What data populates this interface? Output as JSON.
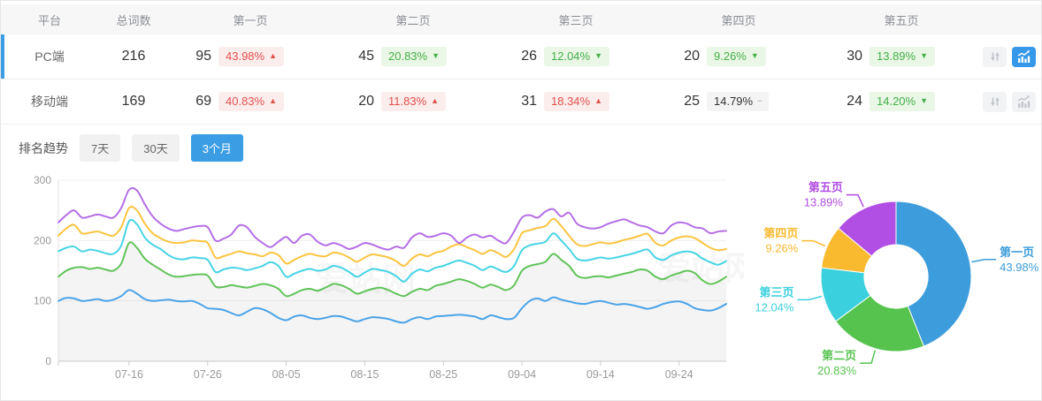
{
  "colors": {
    "accent": "#3b9ee5",
    "up_text": "#e2504c",
    "up_bg": "#fceded",
    "down_text": "#43b049",
    "down_bg": "#eaf6e6",
    "flat_text": "#333333",
    "flat_bg": "#f4f4f4"
  },
  "glyphs": {
    "up": "▲",
    "down": "▼",
    "flat": "−"
  },
  "table": {
    "headers": {
      "platform": "平台",
      "total": "总词数",
      "pages": [
        "第一页",
        "第二页",
        "第三页",
        "第四页",
        "第五页"
      ]
    },
    "rows": [
      {
        "platform": "PC端",
        "total": "216",
        "selected": true,
        "chart_active": true,
        "pages": [
          {
            "count": "95",
            "pct": "43.98%",
            "trend": "up"
          },
          {
            "count": "45",
            "pct": "20.83%",
            "trend": "down"
          },
          {
            "count": "26",
            "pct": "12.04%",
            "trend": "down"
          },
          {
            "count": "20",
            "pct": "9.26%",
            "trend": "down"
          },
          {
            "count": "30",
            "pct": "13.89%",
            "trend": "down"
          }
        ]
      },
      {
        "platform": "移动端",
        "total": "169",
        "selected": false,
        "chart_active": false,
        "pages": [
          {
            "count": "69",
            "pct": "40.83%",
            "trend": "up"
          },
          {
            "count": "20",
            "pct": "11.83%",
            "trend": "up"
          },
          {
            "count": "31",
            "pct": "18.34%",
            "trend": "up"
          },
          {
            "count": "25",
            "pct": "14.79%",
            "trend": "flat"
          },
          {
            "count": "24",
            "pct": "14.20%",
            "trend": "down"
          }
        ]
      }
    ]
  },
  "trend_tabs": {
    "label": "排名趋势",
    "options": [
      {
        "label": "7天",
        "active": false
      },
      {
        "label": "30天",
        "active": false
      },
      {
        "label": "3个月",
        "active": true
      }
    ]
  },
  "chart_data": [
    {
      "type": "line",
      "title": "排名趋势 (3个月)",
      "grid": true,
      "legend_position": "none",
      "watermark": "爱站网",
      "ylim": [
        0,
        300
      ],
      "y_ticks": [
        0,
        100,
        200,
        300
      ],
      "x_tick_labels": [
        "07-16",
        "07-26",
        "08-05",
        "08-15",
        "08-25",
        "09-04",
        "09-14",
        "09-24"
      ],
      "x_tick_day_index": [
        9,
        19,
        29,
        39,
        49,
        59,
        69,
        79
      ],
      "series": [
        {
          "name": "第一页",
          "color": "#4aa3e8",
          "area": false,
          "values": [
            100,
            105,
            104,
            100,
            101,
            103,
            100,
            102,
            108,
            118,
            112,
            103,
            100,
            101,
            102,
            100,
            99,
            100,
            95,
            88,
            87,
            85,
            80,
            76,
            82,
            88,
            86,
            80,
            72,
            68,
            74,
            76,
            72,
            70,
            72,
            75,
            74,
            70,
            66,
            70,
            73,
            72,
            70,
            66,
            64,
            70,
            73,
            70,
            74,
            75,
            76,
            77,
            76,
            74,
            70,
            76,
            73,
            70,
            72,
            88,
            100,
            104,
            100,
            106,
            102,
            99,
            96,
            95,
            98,
            100,
            97,
            94,
            95,
            93,
            90,
            87,
            90,
            95,
            98,
            99,
            95,
            88,
            85,
            84,
            88,
            95
          ]
        },
        {
          "name": "第二页",
          "color": "#62c35a",
          "area": true,
          "values": [
            140,
            150,
            155,
            156,
            153,
            155,
            152,
            150,
            162,
            196,
            188,
            170,
            160,
            152,
            144,
            140,
            141,
            143,
            144,
            142,
            124,
            123,
            126,
            124,
            122,
            125,
            128,
            126,
            120,
            108,
            112,
            118,
            120,
            117,
            122,
            128,
            126,
            120,
            112,
            116,
            120,
            122,
            118,
            112,
            108,
            115,
            120,
            118,
            125,
            128,
            132,
            136,
            133,
            128,
            122,
            127,
            123,
            118,
            126,
            150,
            158,
            161,
            165,
            178,
            168,
            158,
            142,
            138,
            140,
            141,
            139,
            142,
            145,
            148,
            152,
            150,
            140,
            136,
            142,
            146,
            150,
            146,
            134,
            128,
            132,
            140
          ]
        },
        {
          "name": "第三页",
          "color": "#47d4e5",
          "area": false,
          "values": [
            182,
            188,
            190,
            182,
            185,
            183,
            179,
            178,
            192,
            232,
            227,
            205,
            193,
            186,
            176,
            170,
            169,
            172,
            171,
            168,
            148,
            152,
            155,
            154,
            151,
            154,
            158,
            164,
            158,
            140,
            145,
            150,
            153,
            150,
            152,
            158,
            155,
            148,
            140,
            147,
            153,
            151,
            148,
            141,
            132,
            145,
            152,
            149,
            155,
            158,
            163,
            167,
            163,
            158,
            151,
            157,
            152,
            148,
            158,
            184,
            192,
            195,
            198,
            212,
            200,
            186,
            170,
            167,
            169,
            172,
            170,
            172,
            175,
            178,
            182,
            185,
            172,
            168,
            175,
            180,
            182,
            179,
            170,
            164,
            160,
            166
          ]
        },
        {
          "name": "第四页",
          "color": "#fbc440",
          "area": false,
          "values": [
            208,
            220,
            226,
            212,
            213,
            215,
            211,
            208,
            222,
            254,
            250,
            228,
            212,
            204,
            198,
            196,
            197,
            200,
            199,
            196,
            172,
            174,
            178,
            182,
            179,
            177,
            174,
            180,
            176,
            162,
            168,
            174,
            178,
            175,
            174,
            180,
            178,
            172,
            165,
            172,
            177,
            175,
            172,
            166,
            158,
            170,
            177,
            174,
            180,
            183,
            190,
            194,
            189,
            184,
            178,
            184,
            179,
            173,
            186,
            212,
            217,
            221,
            224,
            236,
            224,
            208,
            194,
            191,
            194,
            197,
            195,
            197,
            201,
            204,
            208,
            211,
            196,
            192,
            200,
            205,
            207,
            204,
            196,
            188,
            184,
            186
          ]
        },
        {
          "name": "第五页",
          "color": "#b46ee6",
          "area": false,
          "values": [
            230,
            242,
            250,
            238,
            240,
            243,
            240,
            238,
            254,
            284,
            283,
            260,
            240,
            228,
            220,
            216,
            219,
            222,
            224,
            222,
            200,
            203,
            210,
            225,
            222,
            206,
            196,
            189,
            198,
            206,
            196,
            208,
            210,
            198,
            192,
            196,
            192,
            186,
            190,
            196,
            193,
            188,
            185,
            190,
            188,
            205,
            212,
            206,
            208,
            212,
            208,
            196,
            205,
            210,
            205,
            208,
            200,
            196,
            215,
            238,
            242,
            238,
            248,
            252,
            240,
            246,
            228,
            222,
            220,
            222,
            228,
            232,
            235,
            230,
            225,
            222,
            215,
            212,
            225,
            230,
            228,
            222,
            220,
            212,
            215,
            216
          ]
        }
      ]
    },
    {
      "type": "pie",
      "donut": true,
      "slices": [
        {
          "label": "第一页",
          "value": 43.98,
          "display": "43.98%",
          "color": "#3d9cdb"
        },
        {
          "label": "第二页",
          "value": 20.83,
          "display": "20.83%",
          "color": "#55c34e"
        },
        {
          "label": "第三页",
          "value": 12.04,
          "display": "12.04%",
          "color": "#3bd0de"
        },
        {
          "label": "第四页",
          "value": 9.26,
          "display": "9.26%",
          "color": "#faba2f"
        },
        {
          "label": "第五页",
          "value": 13.89,
          "display": "13.89%",
          "color": "#b14ee3"
        }
      ]
    }
  ]
}
